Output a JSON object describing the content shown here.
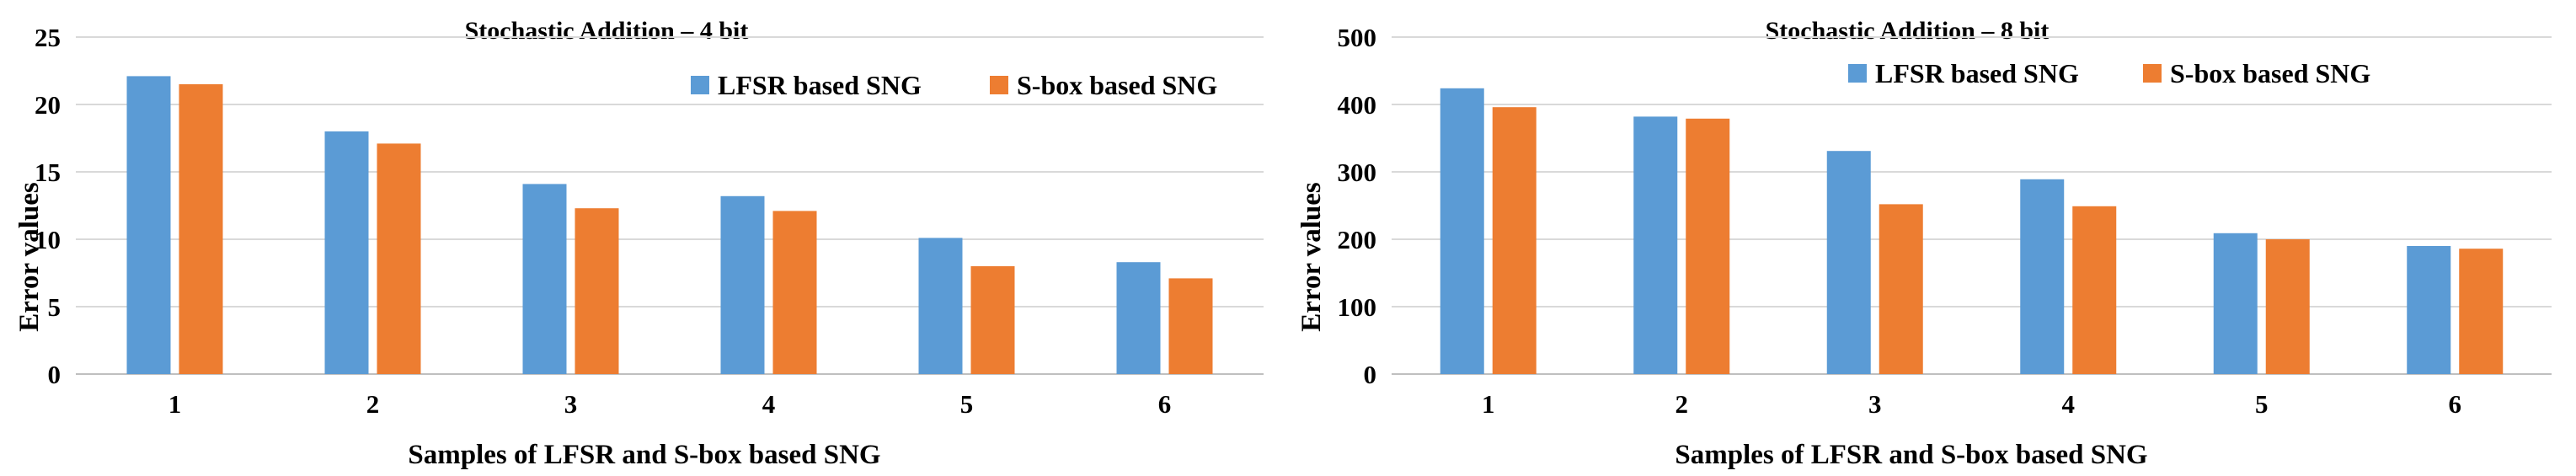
{
  "chart_data": [
    {
      "type": "bar",
      "title": "Stochastic Addition – 4 bit",
      "xlabel": "Samples of LFSR and S-box based SNG",
      "ylabel": "Error values",
      "categories": [
        "1",
        "2",
        "3",
        "4",
        "5",
        "6"
      ],
      "ylim": [
        0,
        25
      ],
      "yticks": [
        0,
        5,
        10,
        15,
        20,
        25
      ],
      "grid": true,
      "legend_position": "top-right",
      "series": [
        {
          "name": "LFSR based SNG",
          "color": "#5b9bd5",
          "values": [
            22.1,
            18.0,
            14.1,
            13.2,
            10.1,
            8.3
          ]
        },
        {
          "name": "S-box based SNG",
          "color": "#ed7d31",
          "values": [
            21.5,
            17.1,
            12.3,
            12.1,
            8.0,
            7.1
          ]
        }
      ]
    },
    {
      "type": "bar",
      "title": "Stochastic Addition – 8 bit",
      "xlabel": "Samples of LFSR and S-box based SNG",
      "ylabel": "Error values",
      "categories": [
        "1",
        "2",
        "3",
        "4",
        "5",
        "6"
      ],
      "ylim": [
        0,
        500
      ],
      "yticks": [
        0,
        100,
        200,
        300,
        400,
        500
      ],
      "grid": true,
      "legend_position": "top-right",
      "series": [
        {
          "name": "LFSR based SNG",
          "color": "#5b9bd5",
          "values": [
            424,
            382,
            331,
            289,
            209,
            190
          ]
        },
        {
          "name": "S-box based SNG",
          "color": "#ed7d31",
          "values": [
            396,
            379,
            252,
            249,
            200,
            186
          ]
        }
      ]
    }
  ]
}
